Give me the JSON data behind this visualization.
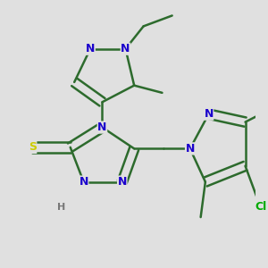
{
  "background_color": "#e0e0e0",
  "bond_color": "#2d6b2d",
  "bond_width": 1.8,
  "atom_colors": {
    "N": "#1a00cc",
    "S": "#cccc00",
    "Cl": "#00aa00",
    "H": "#777777",
    "C": "#2d6b2d"
  },
  "fig_width": 3.0,
  "fig_height": 3.0,
  "dpi": 100,
  "xlim": [
    -1.6,
    2.2
  ],
  "ylim": [
    -1.8,
    1.8
  ]
}
